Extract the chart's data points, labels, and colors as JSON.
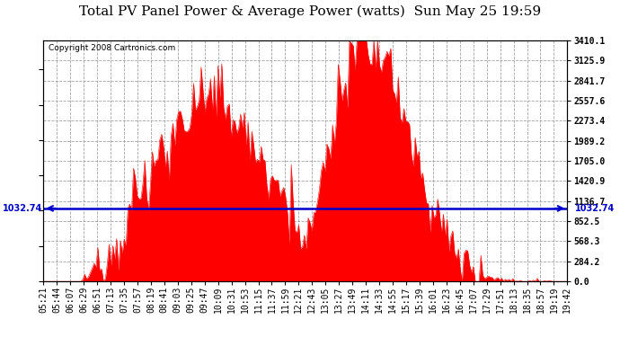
{
  "title": "Total PV Panel Power & Average Power (watts)  Sun May 25 19:59",
  "copyright": "Copyright 2008 Cartronics.com",
  "average_power": 1032.74,
  "ymax": 3410.1,
  "yticks": [
    0.0,
    284.2,
    568.3,
    852.5,
    1136.7,
    1420.9,
    1705.0,
    1989.2,
    2273.4,
    2557.6,
    2841.7,
    3125.9,
    3410.1
  ],
  "background_color": "#ffffff",
  "fill_color": "#ff0000",
  "line_color": "#0000cc",
  "grid_color": "#999999",
  "title_fontsize": 11,
  "copyright_fontsize": 6.5,
  "tick_fontsize": 7,
  "xtick_labels": [
    "05:21",
    "05:44",
    "06:07",
    "06:29",
    "06:51",
    "07:13",
    "07:35",
    "07:57",
    "08:19",
    "08:41",
    "09:03",
    "09:25",
    "09:47",
    "10:09",
    "10:31",
    "10:53",
    "11:15",
    "11:37",
    "11:59",
    "12:21",
    "12:43",
    "13:05",
    "13:27",
    "13:49",
    "14:11",
    "14:33",
    "14:55",
    "15:17",
    "15:39",
    "16:01",
    "16:23",
    "16:45",
    "17:07",
    "17:29",
    "17:51",
    "18:13",
    "18:35",
    "18:57",
    "19:19",
    "19:42"
  ]
}
